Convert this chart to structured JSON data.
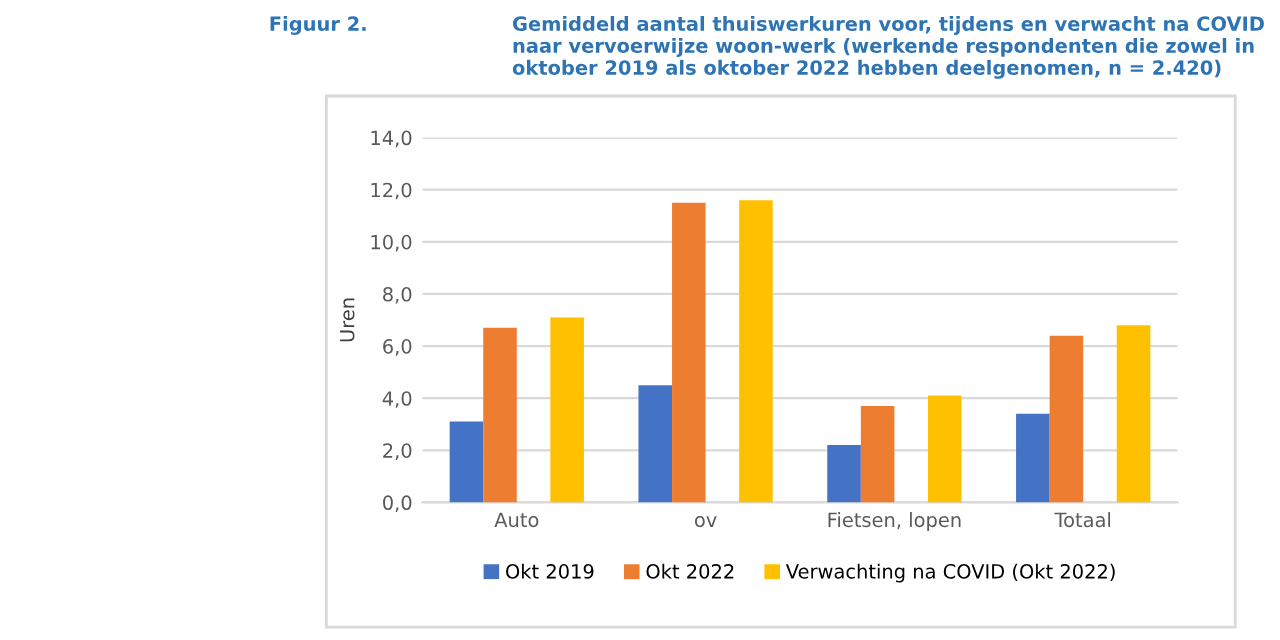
{
  "chart_data": {
    "type": "bar",
    "title": "Gemiddeld aantal thuiswerkuren voor, tijdens en verwacht na COVID naar vervoerwijze woon-werk (werkende respondenten die zowel in oktober 2019 als oktober 2022 hebben deelgenomen, n = 2.420)",
    "annotations": [
      "Figuur 2."
    ],
    "ylabel": "Uren",
    "categories": [
      "Auto",
      "ov",
      "Fietsen, lopen",
      "Totaal"
    ],
    "series": [
      {
        "name": "Okt 2019",
        "color": "#4472c4",
        "values": [
          3.1,
          4.5,
          2.2,
          3.4
        ]
      },
      {
        "name": "Okt 2022",
        "color": "#ed7d31",
        "values": [
          6.7,
          11.5,
          3.7,
          6.4
        ]
      },
      {
        "name": "Verwachting na COVID (Okt 2022)",
        "color": "#ffc000",
        "values": [
          7.1,
          11.6,
          4.1,
          6.8
        ]
      }
    ],
    "ylim": [
      0,
      14
    ],
    "yticks": [
      {
        "value": 0,
        "label": "0,0"
      },
      {
        "value": 2,
        "label": "2,0"
      },
      {
        "value": 4,
        "label": "4,0"
      },
      {
        "value": 6,
        "label": "6,0"
      },
      {
        "value": 8,
        "label": "8,0"
      },
      {
        "value": 10,
        "label": "10,0"
      },
      {
        "value": 12,
        "label": "12,0"
      },
      {
        "value": 14,
        "label": "14,0"
      }
    ],
    "grid": "y",
    "legend": "bottom"
  }
}
